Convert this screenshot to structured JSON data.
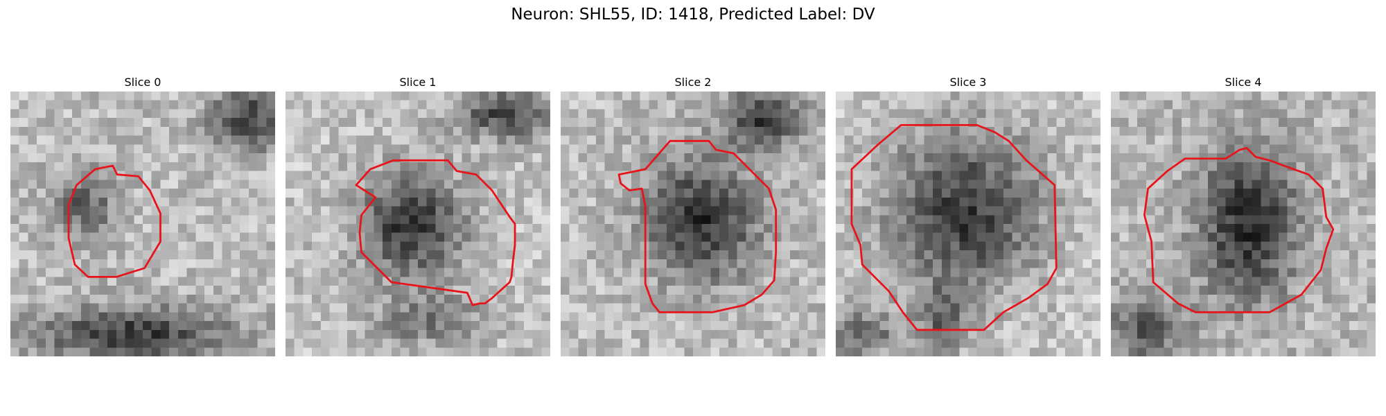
{
  "figure": {
    "title": "Neuron: SHL55, ID: 1418, Predicted Label: DV"
  },
  "panels": [
    {
      "title": "Slice 0"
    },
    {
      "title": "Slice 1"
    },
    {
      "title": "Slice 2"
    },
    {
      "title": "Slice 3"
    },
    {
      "title": "Slice 4"
    }
  ],
  "colors": {
    "contour": "#e8141b",
    "background": "#ffffff"
  }
}
